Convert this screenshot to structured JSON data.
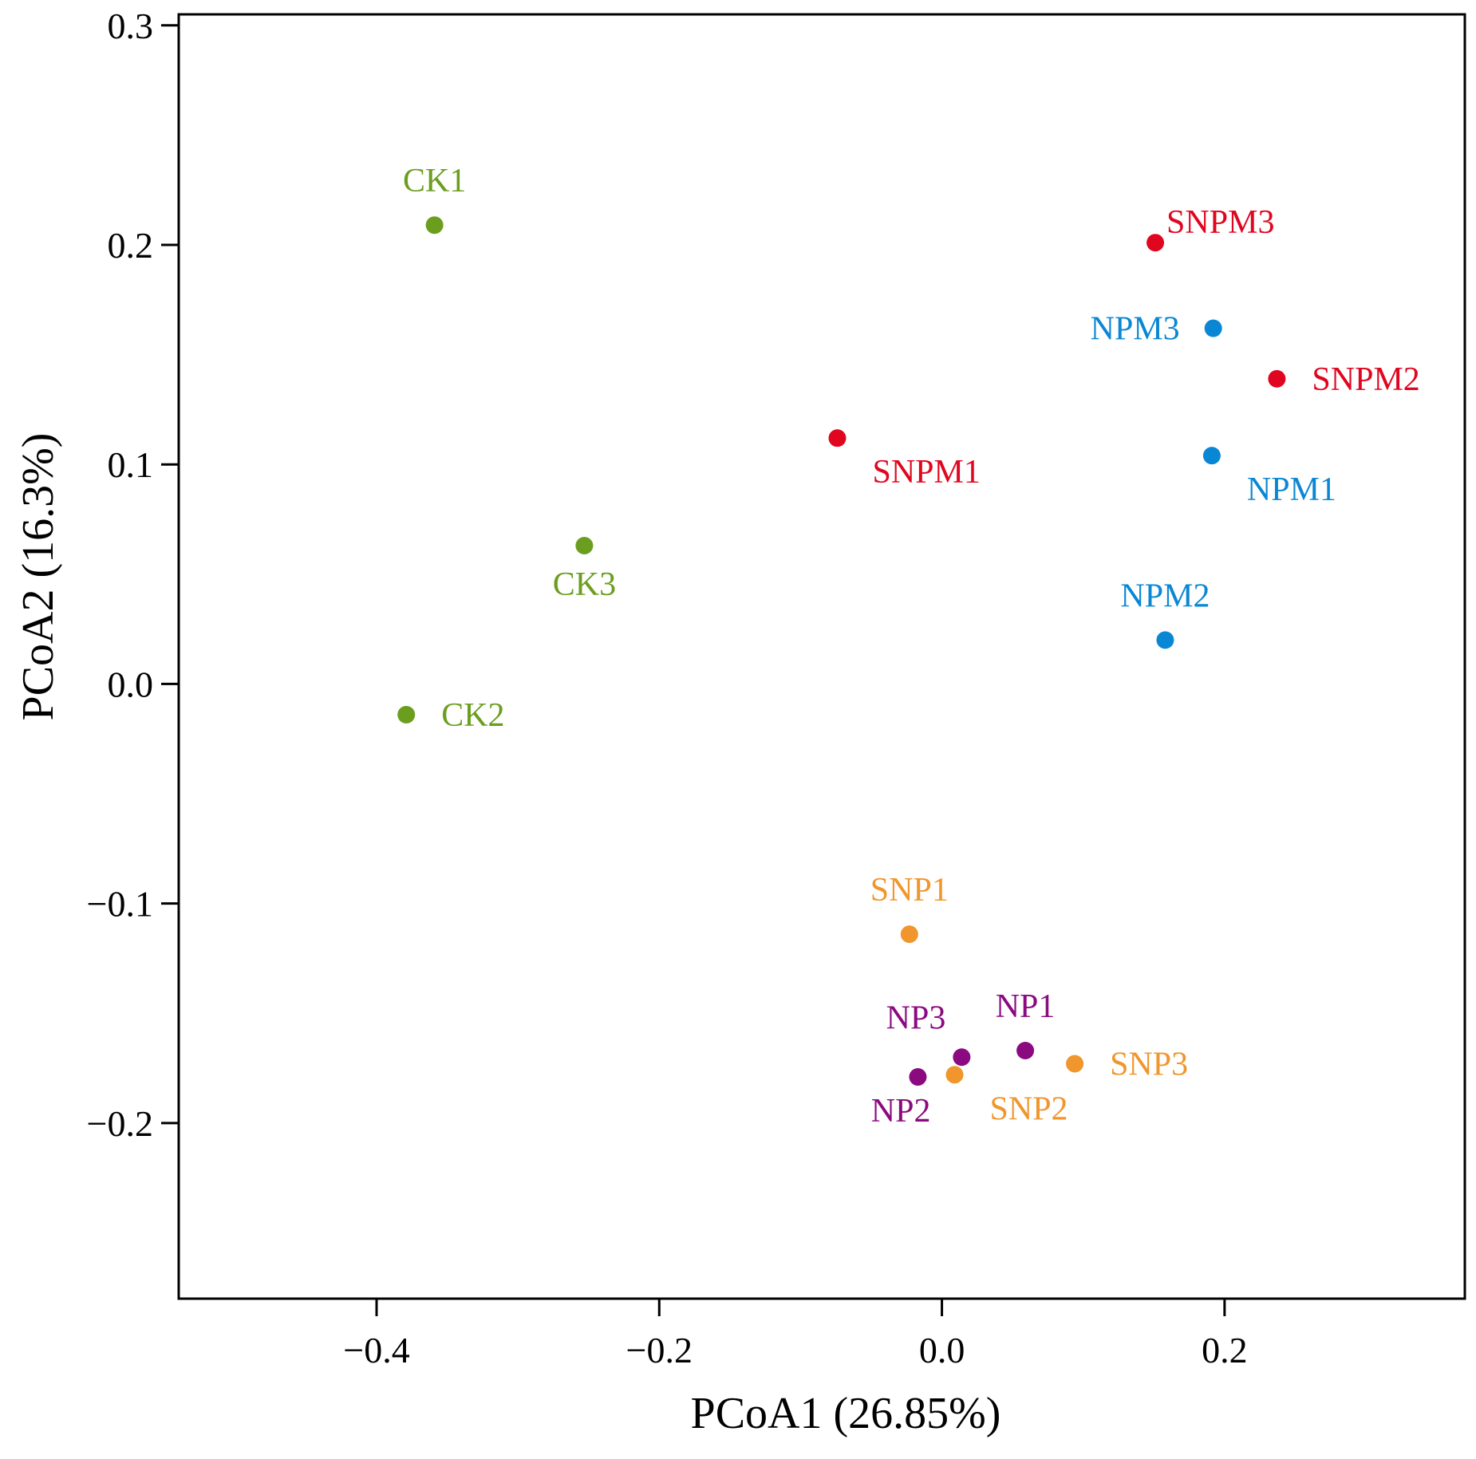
{
  "chart_data": {
    "type": "scatter",
    "title": "",
    "xlabel": "PCoA1 (26.85%)",
    "ylabel": "PCoA2  (16.3%)",
    "xlim": [
      -0.54,
      0.37
    ],
    "ylim": [
      -0.28,
      0.305
    ],
    "grid": false,
    "legend": "none",
    "x_ticks": [
      {
        "value": -0.4,
        "label": "−0.4"
      },
      {
        "value": -0.2,
        "label": "−0.2"
      },
      {
        "value": 0.0,
        "label": "0.0"
      },
      {
        "value": 0.2,
        "label": "0.2"
      }
    ],
    "y_ticks": [
      {
        "value": -0.2,
        "label": "−0.2"
      },
      {
        "value": -0.1,
        "label": "−0.1"
      },
      {
        "value": 0.0,
        "label": "0.0"
      },
      {
        "value": 0.1,
        "label": "0.1"
      },
      {
        "value": 0.2,
        "label": "0.2"
      },
      {
        "value": 0.3,
        "label": "0.3"
      }
    ],
    "groups": [
      {
        "color": "#6b9e1f"
      },
      {
        "color": "#e0061f"
      },
      {
        "color": "#0a87d4"
      },
      {
        "color": "#f0962d"
      },
      {
        "color": "#8b0a80"
      }
    ],
    "points": [
      {
        "label": "CK1",
        "x": -0.359,
        "y": 0.209,
        "group": 0,
        "anchor": "above"
      },
      {
        "label": "CK2",
        "x": -0.379,
        "y": -0.014,
        "group": 0,
        "anchor": "right"
      },
      {
        "label": "CK3",
        "x": -0.253,
        "y": 0.063,
        "group": 0,
        "anchor": "below"
      },
      {
        "label": "SNPM1",
        "x": -0.074,
        "y": 0.112,
        "group": 1,
        "anchor": "below-right"
      },
      {
        "label": "SNPM2",
        "x": 0.237,
        "y": 0.139,
        "group": 1,
        "anchor": "right"
      },
      {
        "label": "SNPM3",
        "x": 0.151,
        "y": 0.201,
        "group": 1,
        "anchor": "upper-right"
      },
      {
        "label": "NPM1",
        "x": 0.191,
        "y": 0.104,
        "group": 2,
        "anchor": "below-right"
      },
      {
        "label": "NPM2",
        "x": 0.158,
        "y": 0.02,
        "group": 2,
        "anchor": "above"
      },
      {
        "label": "NPM3",
        "x": 0.192,
        "y": 0.162,
        "group": 2,
        "anchor": "left"
      },
      {
        "label": "SNP1",
        "x": -0.023,
        "y": -0.114,
        "group": 3,
        "anchor": "above"
      },
      {
        "label": "SNP2",
        "x": 0.009,
        "y": -0.178,
        "group": 3,
        "anchor": "below-right"
      },
      {
        "label": "SNP3",
        "x": 0.094,
        "y": -0.173,
        "group": 3,
        "anchor": "right"
      },
      {
        "label": "NP1",
        "x": 0.059,
        "y": -0.167,
        "group": 4,
        "anchor": "above"
      },
      {
        "label": "NP2",
        "x": -0.017,
        "y": -0.179,
        "group": 4,
        "anchor": "below-left"
      },
      {
        "label": "NP3",
        "x": 0.014,
        "y": -0.17,
        "group": 4,
        "anchor": "upper-left"
      }
    ]
  }
}
